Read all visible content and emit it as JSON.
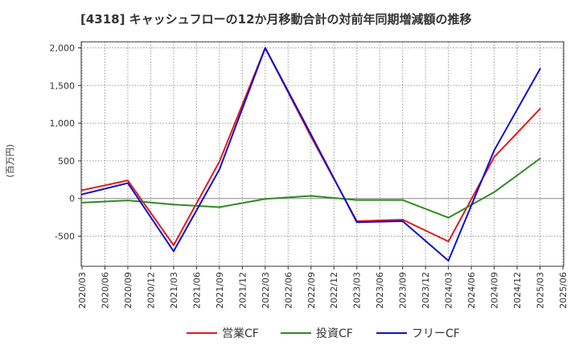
{
  "chart_data": {
    "type": "line",
    "title": "[4318]  キャッシュフローの12か月移動合計の対前年同期増減額の推移",
    "ylabel": "(百万円)",
    "xlabel": "",
    "ylim": [
      -900,
      2080
    ],
    "yticks": [
      2000,
      1500,
      1000,
      500,
      0,
      -500
    ],
    "ytick_labels": [
      "2,000",
      "1,500",
      "1,000",
      "500",
      "0",
      "-500"
    ],
    "categories": [
      "2020/03",
      "2020/06",
      "2020/09",
      "2020/12",
      "2021/03",
      "2021/06",
      "2021/09",
      "2021/12",
      "2022/03",
      "2022/06",
      "2022/09",
      "2022/12",
      "2023/03",
      "2023/06",
      "2023/09",
      "2023/12",
      "2024/03",
      "2024/06",
      "2024/09",
      "2024/12",
      "2025/03",
      "2025/06"
    ],
    "grid": true,
    "legend_position": "bottom",
    "series": [
      {
        "name": "営業CF",
        "color": "#e41a1c",
        "values": [
          110,
          null,
          240,
          null,
          -620,
          null,
          490,
          null,
          2000,
          null,
          820,
          null,
          -300,
          null,
          -280,
          null,
          -570,
          null,
          550,
          null,
          1190,
          null
        ]
      },
      {
        "name": "投資CF",
        "color": "#2e8b22",
        "values": [
          -55,
          null,
          -25,
          null,
          -80,
          null,
          -115,
          null,
          -5,
          null,
          35,
          null,
          -20,
          null,
          -20,
          null,
          -255,
          null,
          85,
          null,
          530,
          null
        ]
      },
      {
        "name": "フリーCF",
        "color": "#1010cc",
        "values": [
          55,
          null,
          205,
          null,
          -700,
          null,
          385,
          null,
          2000,
          null,
          850,
          null,
          -315,
          null,
          -300,
          null,
          -825,
          null,
          640,
          null,
          1720,
          null
        ]
      }
    ]
  }
}
